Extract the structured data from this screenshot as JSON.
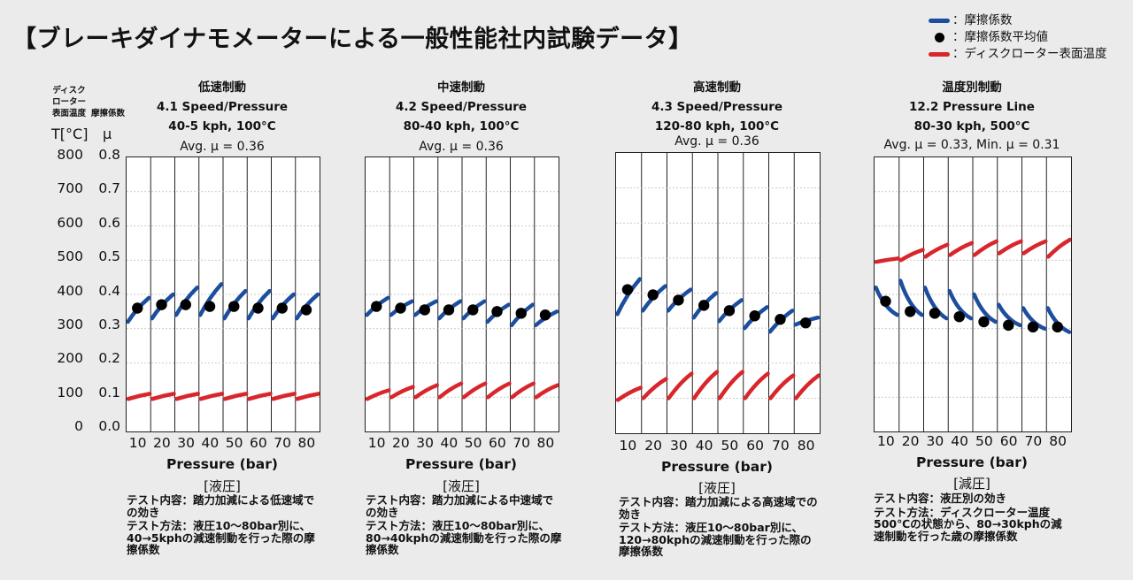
{
  "title": "【ブレーキダイナモメーターによる一般性能社内試験データ】",
  "legend": [
    {
      "label": "：摩擦係数",
      "kind": "line",
      "color": "#1d4e9e"
    },
    {
      "label": "：摩擦係数平均値",
      "kind": "dot",
      "color": "#000000"
    },
    {
      "label": "：ディスクローター表面温度",
      "kind": "line",
      "color": "#d8262b"
    }
  ],
  "axis": {
    "temp_head": [
      "ディスク",
      "ローター",
      "表面温度"
    ],
    "mu_head": "摩擦係数",
    "temp_unit": "T[°C]",
    "mu_unit": "μ",
    "temp_ticks": [
      "800",
      "700",
      "600",
      "500",
      "400",
      "300",
      "200",
      "100",
      "0"
    ],
    "mu_ticks": [
      "0.8",
      "0.7",
      "0.6",
      "0.5",
      "0.4",
      "0.3",
      "0.2",
      "0.1",
      "0.0"
    ]
  },
  "colors": {
    "mu": "#1d4e9e",
    "temp": "#d8262b",
    "avg": "#000000"
  },
  "chart_data": [
    {
      "type": "line",
      "title": "低速制動",
      "subtitle": [
        "4.1 Speed/Pressure",
        "40-5 kph, 100°C"
      ],
      "annotation": "Avg. μ = 0.36",
      "x_ticks": [
        "10",
        "20",
        "30",
        "40",
        "50",
        "60",
        "70",
        "80"
      ],
      "xlabel": "Pressure (bar)",
      "unit_note": "[液圧]",
      "ylim_temp": [
        0,
        800
      ],
      "ylim_mu": [
        0,
        0.8
      ],
      "dashed_temp": [
        150
      ],
      "mu_segments": [
        [
          0.32,
          0.39
        ],
        [
          0.33,
          0.4
        ],
        [
          0.34,
          0.42
        ],
        [
          0.34,
          0.43
        ],
        [
          0.33,
          0.41
        ],
        [
          0.33,
          0.41
        ],
        [
          0.33,
          0.4
        ],
        [
          0.33,
          0.4
        ]
      ],
      "mu_avg": [
        0.36,
        0.37,
        0.37,
        0.365,
        0.365,
        0.36,
        0.36,
        0.355
      ],
      "temp_segments": [
        [
          95,
          110
        ],
        [
          95,
          110
        ],
        [
          95,
          110
        ],
        [
          95,
          110
        ],
        [
          95,
          110
        ],
        [
          95,
          110
        ],
        [
          95,
          110
        ],
        [
          95,
          110
        ]
      ],
      "notes": [
        "テスト内容：踏力加減による低速域での効き",
        "テスト方法：液圧10～80bar別に、40→5kphの減速制動を行った際の摩擦係数"
      ]
    },
    {
      "type": "line",
      "title": "中速制動",
      "subtitle": [
        "4.2 Speed/Pressure",
        "80-40 kph, 100°C"
      ],
      "annotation": "Avg. μ = 0.36",
      "x_ticks": [
        "10",
        "20",
        "30",
        "40",
        "50",
        "60",
        "70",
        "80"
      ],
      "xlabel": "Pressure (bar)",
      "unit_note": "[液圧]",
      "ylim_temp": [
        0,
        800
      ],
      "ylim_mu": [
        0,
        0.8
      ],
      "dashed_temp": [
        150,
        350,
        450,
        750
      ],
      "mu_segments": [
        [
          0.34,
          0.39
        ],
        [
          0.34,
          0.38
        ],
        [
          0.34,
          0.38
        ],
        [
          0.33,
          0.38
        ],
        [
          0.33,
          0.38
        ],
        [
          0.32,
          0.37
        ],
        [
          0.31,
          0.37
        ],
        [
          0.31,
          0.35
        ]
      ],
      "mu_avg": [
        0.365,
        0.36,
        0.355,
        0.355,
        0.355,
        0.35,
        0.345,
        0.34
      ],
      "temp_segments": [
        [
          95,
          120
        ],
        [
          100,
          130
        ],
        [
          100,
          135
        ],
        [
          100,
          140
        ],
        [
          100,
          140
        ],
        [
          100,
          140
        ],
        [
          100,
          140
        ],
        [
          100,
          135
        ]
      ],
      "notes": [
        "テスト内容：踏力加減による中速域での効き",
        "テスト方法：液圧10～80bar別に、80→40kphの減速制動を行った際の摩擦係数"
      ]
    },
    {
      "type": "line",
      "title": "高速制動",
      "subtitle": [
        "4.3 Speed/Pressure",
        "120-80 kph, 100°C"
      ],
      "annotation": "Avg. μ = 0.36",
      "x_ticks": [
        "10",
        "20",
        "30",
        "40",
        "50",
        "60",
        "70",
        "80"
      ],
      "xlabel": "Pressure (bar)",
      "unit_note": "[液圧]",
      "ylim_temp": [
        0,
        800
      ],
      "ylim_mu": [
        0,
        0.8
      ],
      "dashed_temp": [
        350,
        550,
        750
      ],
      "mu_segments": [
        [
          0.34,
          0.44
        ],
        [
          0.35,
          0.42
        ],
        [
          0.35,
          0.41
        ],
        [
          0.33,
          0.4
        ],
        [
          0.32,
          0.38
        ],
        [
          0.3,
          0.36
        ],
        [
          0.29,
          0.35
        ],
        [
          0.31,
          0.33
        ]
      ],
      "mu_avg": [
        0.41,
        0.395,
        0.38,
        0.365,
        0.35,
        0.335,
        0.325,
        0.315
      ],
      "temp_segments": [
        [
          95,
          130
        ],
        [
          100,
          155
        ],
        [
          100,
          170
        ],
        [
          100,
          175
        ],
        [
          100,
          175
        ],
        [
          100,
          170
        ],
        [
          100,
          165
        ],
        [
          100,
          165
        ]
      ],
      "notes": [
        "テスト内容：踏力加減による高速域での効き",
        "テスト方法：液圧10～80bar別に、120→80kphの減速制動を行った際の摩擦係数"
      ]
    },
    {
      "type": "line",
      "title": "温度別制動",
      "subtitle": [
        "12.2 Pressure Line",
        "80-30 kph, 500°C"
      ],
      "annotation": "Avg. μ = 0.33, Min. μ = 0.31",
      "x_ticks": [
        "10",
        "20",
        "30",
        "40",
        "50",
        "60",
        "70",
        "80"
      ],
      "xlabel": "Pressure (bar)",
      "unit_note": "[減圧]",
      "ylim_temp": [
        0,
        800
      ],
      "ylim_mu": [
        0,
        0.8
      ],
      "dashed_temp": [
        250,
        550
      ],
      "mu_segments": [
        [
          0.34,
          0.42
        ],
        [
          0.34,
          0.44
        ],
        [
          0.33,
          0.42
        ],
        [
          0.33,
          0.41
        ],
        [
          0.32,
          0.4
        ],
        [
          0.31,
          0.37
        ],
        [
          0.3,
          0.36
        ],
        [
          0.29,
          0.36
        ]
      ],
      "mu_avg": [
        0.38,
        0.35,
        0.345,
        0.335,
        0.32,
        0.31,
        0.305,
        0.305
      ],
      "temp_segments": [
        [
          495,
          505
        ],
        [
          500,
          530
        ],
        [
          510,
          545
        ],
        [
          515,
          550
        ],
        [
          515,
          555
        ],
        [
          520,
          555
        ],
        [
          520,
          555
        ],
        [
          510,
          560
        ]
      ],
      "notes": [
        "テスト内容：液圧別の効き",
        "テスト方法：ディスクローター温度500℃の状態から、80→30kphの減速制動を行った歳の摩擦係数"
      ]
    }
  ]
}
